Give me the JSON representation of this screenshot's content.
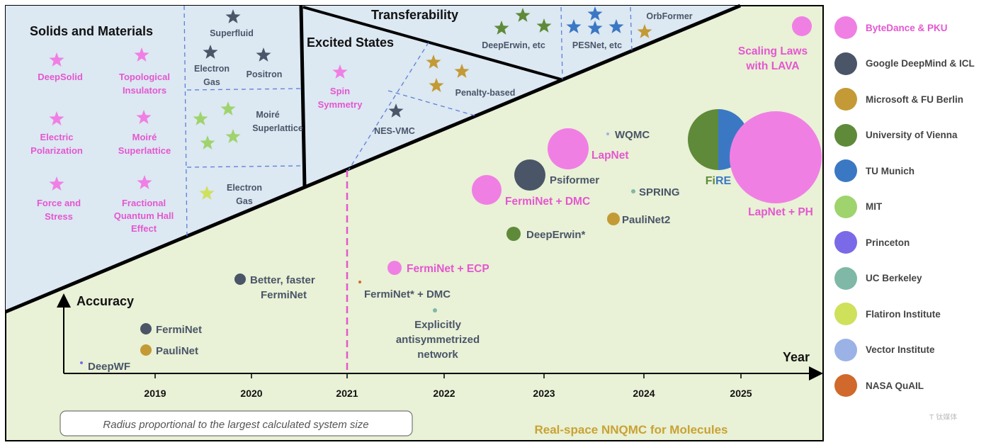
{
  "timeline": {
    "axis_x_label": "Year",
    "axis_y_label": "Accuracy",
    "years": [
      "2019",
      "2020",
      "2021",
      "2022",
      "2023",
      "2024",
      "2025"
    ],
    "bottom_label": "Real-space NNQMC for Molecules",
    "radius_note": "Radius proportional to the largest calculated system size",
    "points": [
      {
        "label": "DeepWF",
        "org": "Vector Institute"
      },
      {
        "label": "FermiNet",
        "org": "Google DeepMind & ICL"
      },
      {
        "label": "PauliNet",
        "org": "Microsoft & FU Berlin"
      },
      {
        "label": "Better, faster",
        "label2": "FermiNet",
        "org": "Google DeepMind & ICL"
      },
      {
        "label": "FermiNet* + DMC",
        "org": "NASA QuAIL"
      },
      {
        "label": "FermiNet + ECP",
        "org": "ByteDance & PKU"
      },
      {
        "label": "Explicitly",
        "label2": "antisymmetrized",
        "label3": "network",
        "org": "UC Berkeley"
      },
      {
        "label": "FermiNet + DMC",
        "org": "ByteDance & PKU"
      },
      {
        "label": "DeepErwin*",
        "org": "University of Vienna"
      },
      {
        "label": "Psiformer",
        "org": "Google DeepMind & ICL"
      },
      {
        "label": "LapNet",
        "org": "ByteDance & PKU"
      },
      {
        "label": "WQMC",
        "org": "Vector Institute"
      },
      {
        "label": "SPRING",
        "org": "UC Berkeley"
      },
      {
        "label": "PauliNet2",
        "org": "Microsoft & FU Berlin"
      },
      {
        "label": "FiRE",
        "org": "University of Vienna / TU Munich"
      },
      {
        "label": "LapNet + PH",
        "org": "ByteDance & PKU"
      },
      {
        "label": "Scaling Laws",
        "label2": "with LAVA",
        "org": "ByteDance & PKU"
      }
    ]
  },
  "regions": {
    "solids": {
      "title": "Solids and Materials",
      "items": [
        {
          "l1": "DeepSolid"
        },
        {
          "l1": "Topological",
          "l2": "Insulators"
        },
        {
          "l1": "Electric",
          "l2": "Polarization"
        },
        {
          "l1": "Moiré",
          "l2": "Superlattice"
        },
        {
          "l1": "Force and",
          "l2": "Stress"
        },
        {
          "l1": "Fractional",
          "l2": "Quantum Hall",
          "l3": "Effect"
        },
        {
          "l1": "Superfluid"
        },
        {
          "l1": "Electron",
          "l2": "Gas"
        },
        {
          "l1": "Positron"
        },
        {
          "l1": "Moiré",
          "l2": "Superlattice"
        },
        {
          "l1": "Electron",
          "l2": "Gas"
        }
      ]
    },
    "excited": {
      "title": "Excited States",
      "items": [
        {
          "l1": "Spin",
          "l2": "Symmetry"
        },
        {
          "l1": "Penalty-based"
        },
        {
          "l1": "NES-VMC"
        }
      ]
    },
    "transfer": {
      "title": "Transferability",
      "items": [
        {
          "l1": "DeepErwin, etc"
        },
        {
          "l1": "PESNet, etc"
        },
        {
          "l1": "OrbFormer"
        }
      ]
    }
  },
  "legend": [
    {
      "label": "ByteDance & PKU",
      "color": "#f07fe4"
    },
    {
      "label": "Google DeepMind & ICL",
      "color": "#4a5568"
    },
    {
      "label": "Microsoft & FU Berlin",
      "color": "#c39a35"
    },
    {
      "label": "University of Vienna",
      "color": "#5f8a3a"
    },
    {
      "label": "TU Munich",
      "color": "#3b78c4"
    },
    {
      "label": "MIT",
      "color": "#9fd36d"
    },
    {
      "label": "Princeton",
      "color": "#7a6ae8"
    },
    {
      "label": "UC Berkeley",
      "color": "#7fb8a6"
    },
    {
      "label": "Flatiron Institute",
      "color": "#cfe05b"
    },
    {
      "label": "Vector Institute",
      "color": "#9bb2e6"
    },
    {
      "label": "NASA QuAIL",
      "color": "#d0692b"
    }
  ]
}
